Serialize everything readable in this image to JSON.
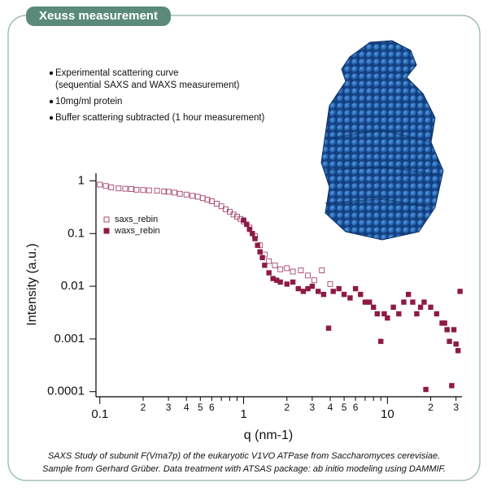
{
  "chart_data": {
    "type": "scatter",
    "title": "Xeuss measurement",
    "notes": [
      "Experimental scattering curve",
      "(sequential SAXS and WAXS measurement)",
      "10mg/ml protein",
      "Buffer scattering subtracted (1 hour measurement)"
    ],
    "caption": [
      "SAXS Study of subunit F(Vma7p) of the eukaryotic V1VO ATPase from Saccharomyces cerevisiae.",
      "Sample from Gerhard Grüber. Data treatment with ATSAS package: ab initio modeling using DAMMIF."
    ],
    "x_label": "q (nm-1)",
    "y_label": "Intensity (a.u.)",
    "xscale": "log",
    "yscale": "log",
    "xlim": [
      0.094,
      33
    ],
    "ylim": [
      8e-05,
      1.4
    ],
    "xticks": [
      0.1,
      {
        "value": 0.2,
        "label": "2"
      },
      {
        "value": 0.3,
        "label": "3"
      },
      {
        "value": 0.4,
        "label": "4"
      },
      {
        "value": 0.5,
        "label": "5"
      },
      {
        "value": 0.6,
        "label": "6"
      },
      1,
      {
        "value": 2,
        "label": "2"
      },
      {
        "value": 3,
        "label": "3"
      },
      {
        "value": 4,
        "label": "4"
      },
      {
        "value": 5,
        "label": "5"
      },
      {
        "value": 6,
        "label": "6"
      },
      10,
      {
        "value": 20,
        "label": "2"
      },
      {
        "value": 30,
        "label": "3"
      }
    ],
    "xminor_ticks": [
      0.7,
      0.8,
      0.9,
      7,
      8,
      9
    ],
    "yticks": [
      1,
      0.1,
      0.01,
      0.001,
      0.0001
    ],
    "legend": "upper-left",
    "series": [
      {
        "name": "saxs_rebin",
        "color": "#a5456f",
        "marker": "open-square",
        "x": [
          0.1,
          0.11,
          0.12,
          0.135,
          0.15,
          0.165,
          0.18,
          0.2,
          0.22,
          0.25,
          0.28,
          0.3,
          0.33,
          0.36,
          0.4,
          0.44,
          0.48,
          0.52,
          0.56,
          0.6,
          0.65,
          0.7,
          0.75,
          0.8,
          0.85,
          0.9,
          0.95,
          1.0,
          1.1,
          1.2,
          1.3,
          1.4,
          1.5,
          1.65,
          1.8,
          2.0,
          2.2,
          2.5,
          2.8,
          3.1,
          3.5,
          4.0
        ],
        "values": [
          0.85,
          0.8,
          0.75,
          0.72,
          0.71,
          0.7,
          0.68,
          0.67,
          0.66,
          0.65,
          0.63,
          0.62,
          0.6,
          0.57,
          0.55,
          0.52,
          0.5,
          0.47,
          0.44,
          0.41,
          0.37,
          0.33,
          0.29,
          0.26,
          0.23,
          0.21,
          0.19,
          0.17,
          0.13,
          0.09,
          0.06,
          0.04,
          0.03,
          0.025,
          0.021,
          0.022,
          0.019,
          0.02,
          0.016,
          0.013,
          0.02,
          0.011
        ]
      },
      {
        "name": "waxs_rebin",
        "color": "#8e1a45",
        "marker": "filled-square",
        "x": [
          1.0,
          1.05,
          1.1,
          1.15,
          1.2,
          1.25,
          1.3,
          1.35,
          1.4,
          1.5,
          1.6,
          1.7,
          1.8,
          2.0,
          2.2,
          2.4,
          2.6,
          2.8,
          3.0,
          3.3,
          3.6,
          3.9,
          4.2,
          4.6,
          5.0,
          5.5,
          6.0,
          6.5,
          7.0,
          7.5,
          8.0,
          8.5,
          9.0,
          9.5,
          10,
          11,
          12,
          13,
          14,
          15,
          16,
          17,
          18,
          18.5,
          20,
          22,
          24,
          25,
          26,
          27,
          28,
          29,
          30,
          31,
          32
        ],
        "values": [
          0.18,
          0.15,
          0.12,
          0.1,
          0.08,
          0.06,
          0.045,
          0.035,
          0.025,
          0.018,
          0.014,
          0.013,
          0.012,
          0.011,
          0.012,
          0.009,
          0.008,
          0.009,
          0.01,
          0.008,
          0.007,
          0.0016,
          0.008,
          0.009,
          0.007,
          0.006,
          0.009,
          0.007,
          0.005,
          0.005,
          0.004,
          0.003,
          0.0009,
          0.003,
          0.0025,
          0.004,
          0.003,
          0.005,
          0.007,
          0.005,
          0.003,
          0.004,
          0.005,
          0.00011,
          0.004,
          0.003,
          0.002,
          0.002,
          0.0015,
          0.0009,
          0.00013,
          0.0015,
          0.0008,
          0.0006,
          0.008
        ]
      }
    ]
  }
}
